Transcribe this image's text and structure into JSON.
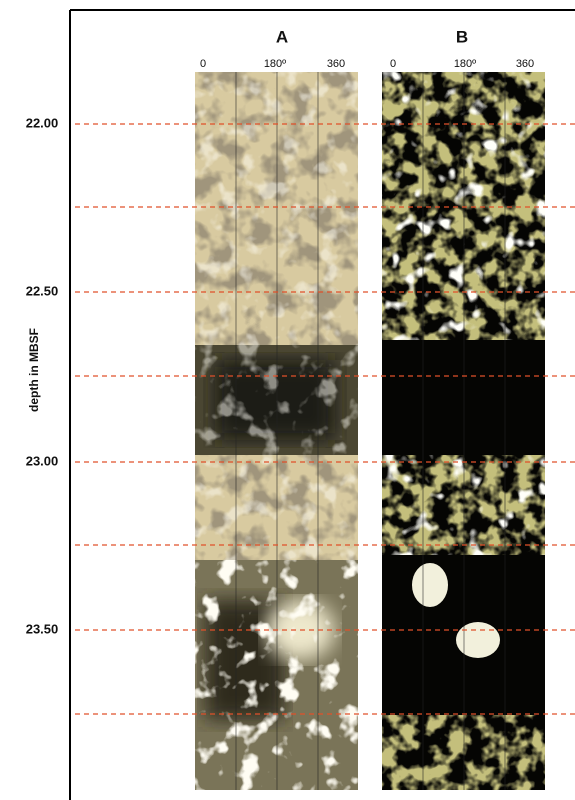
{
  "figure": {
    "panels": [
      {
        "title": "A",
        "azimuth_ticks": [
          "0",
          "180º",
          "360"
        ]
      },
      {
        "title": "B",
        "azimuth_ticks": [
          "0",
          "180º",
          "360"
        ]
      }
    ],
    "depth_axis": {
      "label": "depth in MBSF",
      "ticks": [
        "22.00",
        "22.50",
        "23.00",
        "23.50"
      ]
    }
  }
}
